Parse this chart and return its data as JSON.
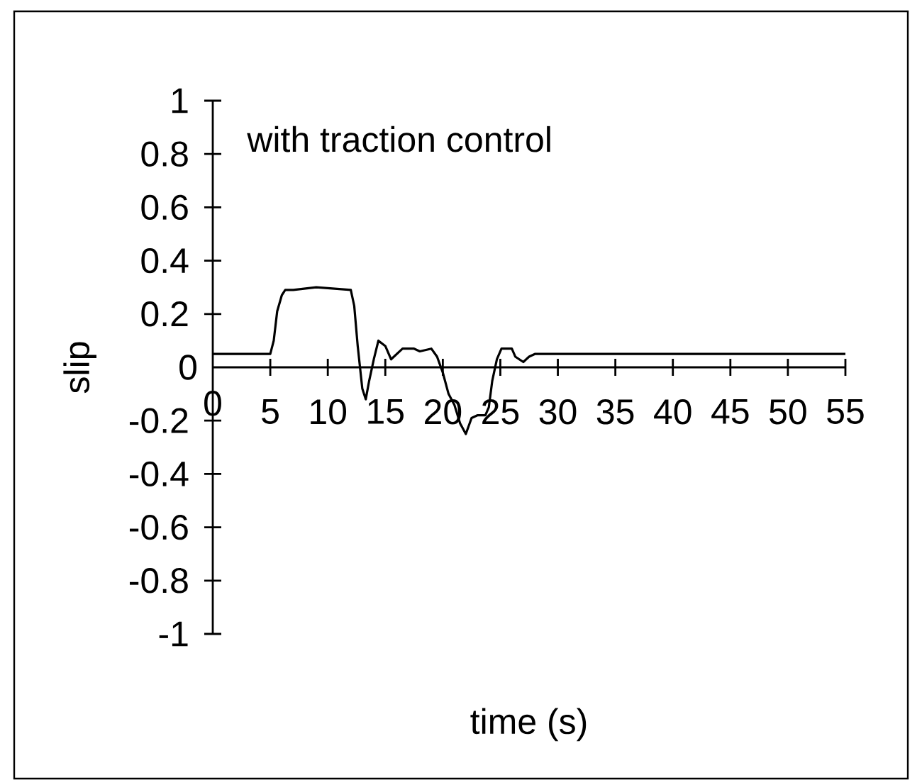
{
  "chart_data": {
    "type": "line",
    "xlabel": "time (s)",
    "ylabel": "slip",
    "annotations": [
      "with traction control"
    ],
    "xlim": [
      0,
      55
    ],
    "xticks": [
      0,
      5,
      10,
      15,
      20,
      25,
      30,
      35,
      40,
      45,
      50,
      55
    ],
    "ylim": [
      -1,
      1
    ],
    "yticks": [
      -1,
      -0.8,
      -0.6,
      -0.4,
      -0.2,
      0,
      0.2,
      0.4,
      0.6,
      0.8,
      1
    ],
    "grid": false,
    "line_style": "solid",
    "series": [
      {
        "color": "#000000",
        "x": [
          0,
          5,
          5.3,
          5.6,
          6.0,
          6.3,
          7,
          9,
          12,
          12.3,
          12.6,
          13,
          13.3,
          13.6,
          14,
          14.4,
          15,
          15.5,
          16,
          16.5,
          17.5,
          18,
          19,
          19.5,
          20,
          20.5,
          21,
          21.5,
          22,
          22.5,
          23,
          23.7,
          24,
          24.3,
          24.7,
          25.1,
          26,
          26.3,
          27,
          27.5,
          28,
          29,
          55
        ],
        "values": [
          0.05,
          0.05,
          0.1,
          0.21,
          0.27,
          0.29,
          0.29,
          0.3,
          0.29,
          0.23,
          0.08,
          -0.08,
          -0.12,
          -0.05,
          0.03,
          0.1,
          0.08,
          0.03,
          0.05,
          0.07,
          0.07,
          0.06,
          0.07,
          0.04,
          -0.02,
          -0.1,
          -0.14,
          -0.21,
          -0.25,
          -0.19,
          -0.18,
          -0.18,
          -0.15,
          -0.05,
          0.03,
          0.07,
          0.07,
          0.04,
          0.02,
          0.04,
          0.05,
          0.05,
          0.05
        ]
      }
    ]
  }
}
